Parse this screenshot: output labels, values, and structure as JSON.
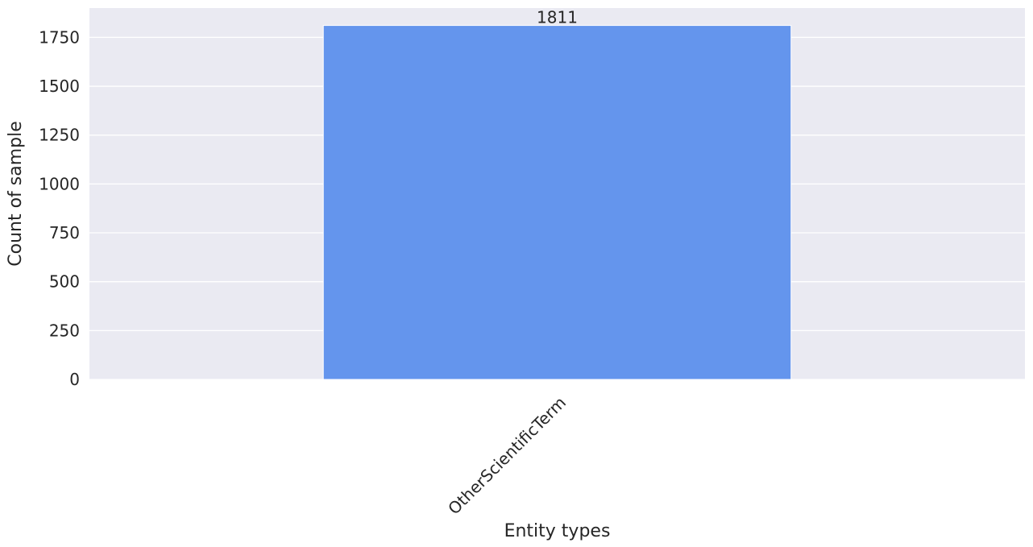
{
  "chart_data": {
    "type": "bar",
    "title": "",
    "xlabel": "Entity types",
    "ylabel": "Count of sample",
    "categories": [
      "OtherScientificTerm"
    ],
    "values": [
      1811
    ],
    "data_labels": [
      "1811"
    ],
    "ylim": [
      0,
      1900
    ],
    "yticks": [
      0,
      250,
      500,
      750,
      1000,
      1250,
      1500,
      1750
    ],
    "ytick_labels": [
      "0",
      "250",
      "500",
      "750",
      "1000",
      "1250",
      "1500",
      "1750"
    ],
    "grid": true,
    "legend": "none",
    "bar_color": "#6495ED",
    "plot_background": "#EAEAF2",
    "grid_color": "#FFFFFF"
  }
}
